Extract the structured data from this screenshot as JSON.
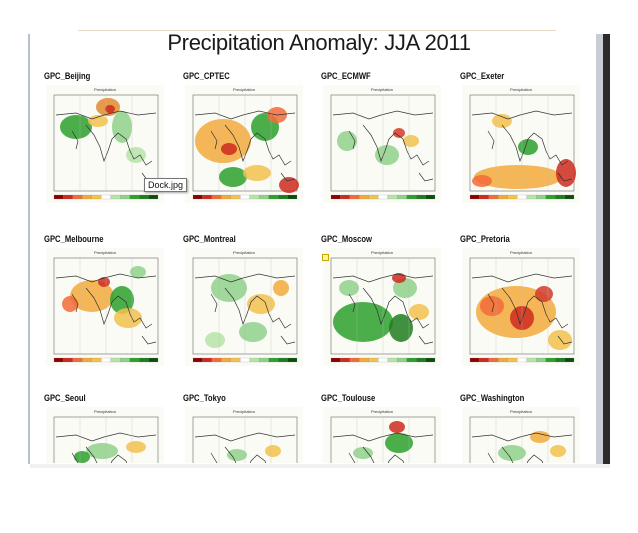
{
  "title": "Precipitation Anomaly: JJA 2011",
  "tooltip": "Dock.jpg",
  "panel_subtitle": "Precipitation",
  "panels": [
    {
      "label": "GPC_Beijing",
      "blobs": [
        [
          "#2da02d",
          30,
          42,
          16,
          12
        ],
        [
          "#e08a2a",
          62,
          22,
          12,
          9
        ],
        [
          "#cc2a1e",
          64,
          24,
          5,
          4
        ],
        [
          "#8fd08a",
          76,
          42,
          10,
          16
        ],
        [
          "#f2c14e",
          52,
          36,
          10,
          6
        ],
        [
          "#b5e3a8",
          90,
          70,
          10,
          8
        ]
      ]
    },
    {
      "label": "GPC_CPTEC",
      "blobs": [
        [
          "#f2a93b",
          38,
          56,
          28,
          22
        ],
        [
          "#cc2a1e",
          44,
          64,
          8,
          6
        ],
        [
          "#2da02d",
          80,
          42,
          14,
          14
        ],
        [
          "#f26b3a",
          92,
          30,
          10,
          8
        ],
        [
          "#2da02d",
          48,
          92,
          14,
          10
        ],
        [
          "#cc2a1e",
          104,
          100,
          10,
          8
        ],
        [
          "#f2c14e",
          72,
          88,
          14,
          8
        ]
      ]
    },
    {
      "label": "GPC_ECMWF",
      "blobs": [
        [
          "#8fd08a",
          24,
          56,
          10,
          10
        ],
        [
          "#8fd08a",
          64,
          70,
          12,
          10
        ],
        [
          "#d23a2a",
          76,
          48,
          6,
          5
        ],
        [
          "#f2c14e",
          88,
          56,
          8,
          6
        ]
      ]
    },
    {
      "label": "GPC_Exeter",
      "blobs": [
        [
          "#f2a93b",
          56,
          92,
          44,
          12
        ],
        [
          "#cc2a1e",
          104,
          88,
          10,
          14
        ],
        [
          "#2da02d",
          66,
          62,
          10,
          8
        ],
        [
          "#f2c14e",
          40,
          36,
          10,
          7
        ],
        [
          "#f26b3a",
          20,
          96,
          10,
          6
        ]
      ]
    },
    {
      "label": "GPC_Melbourne",
      "blobs": [
        [
          "#f2a93b",
          46,
          48,
          22,
          16
        ],
        [
          "#cc2a1e",
          58,
          34,
          6,
          5
        ],
        [
          "#2da02d",
          76,
          52,
          12,
          14
        ],
        [
          "#f2c14e",
          82,
          70,
          14,
          10
        ],
        [
          "#f26b3a",
          24,
          56,
          8,
          8
        ],
        [
          "#8fd08a",
          92,
          24,
          8,
          6
        ]
      ]
    },
    {
      "label": "GPC_Montreal",
      "blobs": [
        [
          "#8fd08a",
          44,
          40,
          18,
          14
        ],
        [
          "#f2c14e",
          76,
          56,
          14,
          10
        ],
        [
          "#8fd08a",
          68,
          84,
          14,
          10
        ],
        [
          "#f2a93b",
          96,
          40,
          8,
          8
        ],
        [
          "#b5e3a8",
          30,
          92,
          10,
          8
        ]
      ]
    },
    {
      "label": "GPC_Moscow",
      "blobs": [
        [
          "#2da02d",
          40,
          74,
          30,
          20
        ],
        [
          "#1e7d1e",
          78,
          80,
          12,
          14
        ],
        [
          "#8fd08a",
          82,
          40,
          12,
          10
        ],
        [
          "#cc2a1e",
          76,
          30,
          7,
          5
        ],
        [
          "#f2c14e",
          96,
          64,
          10,
          8
        ],
        [
          "#8fd08a",
          26,
          40,
          10,
          8
        ]
      ]
    },
    {
      "label": "GPC_Pretoria",
      "blobs": [
        [
          "#f2a93b",
          54,
          64,
          40,
          26
        ],
        [
          "#cc2a1e",
          60,
          70,
          12,
          12
        ],
        [
          "#d23a2a",
          82,
          46,
          9,
          8
        ],
        [
          "#f26b3a",
          30,
          58,
          12,
          10
        ],
        [
          "#f2c14e",
          98,
          92,
          12,
          10
        ]
      ]
    },
    {
      "label": "GPC_Seoul",
      "blobs": [
        [
          "#8fd08a",
          56,
          44,
          16,
          8
        ],
        [
          "#2da02d",
          36,
          50,
          8,
          6
        ],
        [
          "#f2c14e",
          90,
          40,
          10,
          6
        ]
      ]
    },
    {
      "label": "GPC_Tokyo",
      "blobs": [
        [
          "#8fd08a",
          52,
          48,
          10,
          6
        ],
        [
          "#f2c14e",
          88,
          44,
          8,
          6
        ]
      ]
    },
    {
      "label": "GPC_Toulouse",
      "blobs": [
        [
          "#2da02d",
          76,
          36,
          14,
          10
        ],
        [
          "#cc2a1e",
          74,
          20,
          8,
          6
        ],
        [
          "#8fd08a",
          40,
          46,
          10,
          6
        ]
      ]
    },
    {
      "label": "GPC_Washington",
      "blobs": [
        [
          "#8fd08a",
          50,
          46,
          14,
          8
        ],
        [
          "#f2a93b",
          78,
          30,
          10,
          6
        ],
        [
          "#f2c14e",
          96,
          44,
          8,
          6
        ]
      ]
    }
  ],
  "colors": {
    "land_outline": "#333333",
    "colorbar": [
      "#8b0000",
      "#cc2a1e",
      "#f26b3a",
      "#f2a93b",
      "#f2c14e",
      "#ffffff",
      "#b5e3a8",
      "#8fd08a",
      "#2da02d",
      "#1e7d1e",
      "#0b4d0b"
    ]
  }
}
